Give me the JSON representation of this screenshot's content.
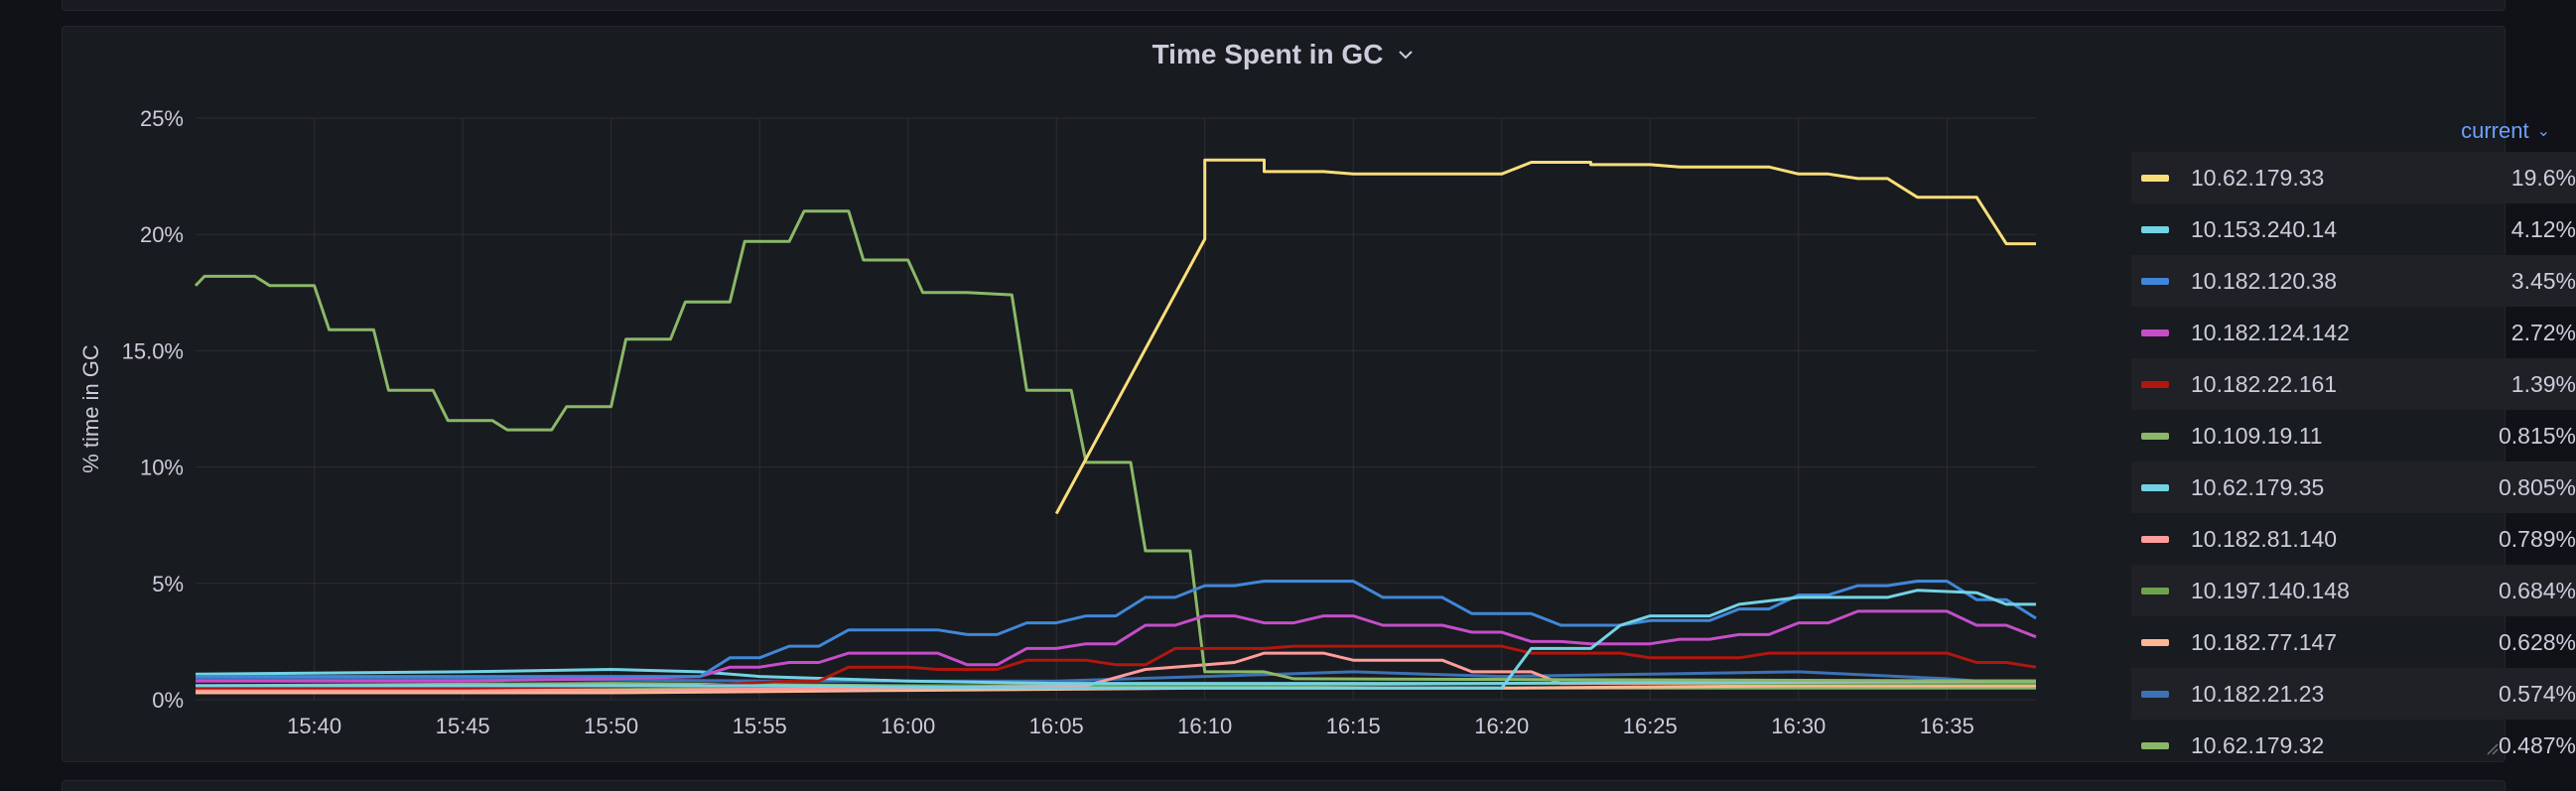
{
  "panel": {
    "title": "Time Spent in GC"
  },
  "legend": {
    "header": "current"
  },
  "colors": {
    "grid": "#2c2e33",
    "tick": "#ccccdc",
    "accent": "#6e9fff"
  },
  "chart_data": {
    "type": "line",
    "title": "Time Spent in GC",
    "ylabel": "% time in GC",
    "xlabel": "",
    "x_domain": [
      "15:36",
      "16:38"
    ],
    "ylim": [
      0,
      25
    ],
    "x_ticks": [
      "15:40",
      "15:45",
      "15:50",
      "15:55",
      "16:00",
      "16:05",
      "16:10",
      "16:15",
      "16:20",
      "16:25",
      "16:30",
      "16:35"
    ],
    "y_ticks": [
      {
        "value": 0,
        "label": "0%"
      },
      {
        "value": 5,
        "label": "5%"
      },
      {
        "value": 10,
        "label": "10%"
      },
      {
        "value": 15,
        "label": "15.0%"
      },
      {
        "value": 20,
        "label": "20%"
      },
      {
        "value": 25,
        "label": "25%"
      }
    ],
    "grid": true,
    "legend_position": "right",
    "series": [
      {
        "name": "10.62.179.33",
        "color": "#fade7a",
        "current": "19.6%",
        "points": [
          [
            "16:05",
            8.0
          ],
          [
            "16:10",
            19.8
          ],
          [
            "16:10",
            23.2
          ],
          [
            "16:12",
            23.2
          ],
          [
            "16:12",
            22.7
          ],
          [
            "16:14",
            22.7
          ],
          [
            "16:15",
            22.6
          ],
          [
            "16:17",
            22.6
          ],
          [
            "16:20",
            22.6
          ],
          [
            "16:21",
            23.1
          ],
          [
            "16:23",
            23.1
          ],
          [
            "16:23",
            23.0
          ],
          [
            "16:25",
            23.0
          ],
          [
            "16:26",
            22.9
          ],
          [
            "16:29",
            22.9
          ],
          [
            "16:30",
            22.6
          ],
          [
            "16:31",
            22.6
          ],
          [
            "16:32",
            22.4
          ],
          [
            "16:33",
            22.4
          ],
          [
            "16:34",
            21.6
          ],
          [
            "16:36",
            21.6
          ],
          [
            "16:37",
            19.6
          ],
          [
            "16:38",
            19.6
          ]
        ]
      },
      {
        "name": "10.153.240.14",
        "color": "#73d2e4",
        "current": "4.12%",
        "points": [
          [
            "15:36",
            0.6
          ],
          [
            "15:45",
            0.6
          ],
          [
            "15:55",
            0.6
          ],
          [
            "16:05",
            0.5
          ],
          [
            "16:10",
            0.5
          ],
          [
            "16:15",
            0.5
          ],
          [
            "16:20",
            0.5
          ],
          [
            "16:21",
            2.2
          ],
          [
            "16:23",
            2.2
          ],
          [
            "16:24",
            3.2
          ],
          [
            "16:25",
            3.6
          ],
          [
            "16:27",
            3.6
          ],
          [
            "16:28",
            4.1
          ],
          [
            "16:30",
            4.4
          ],
          [
            "16:33",
            4.4
          ],
          [
            "16:34",
            4.7
          ],
          [
            "16:36",
            4.6
          ],
          [
            "16:37",
            4.1
          ],
          [
            "16:38",
            4.1
          ]
        ]
      },
      {
        "name": "10.182.120.38",
        "color": "#4087d8",
        "current": "3.45%",
        "points": [
          [
            "15:36",
            1.0
          ],
          [
            "15:45",
            1.0
          ],
          [
            "15:50",
            1.0
          ],
          [
            "15:53",
            1.0
          ],
          [
            "15:54",
            1.8
          ],
          [
            "15:55",
            1.8
          ],
          [
            "15:56",
            2.3
          ],
          [
            "15:57",
            2.3
          ],
          [
            "15:58",
            3.0
          ],
          [
            "16:01",
            3.0
          ],
          [
            "16:02",
            2.8
          ],
          [
            "16:03",
            2.8
          ],
          [
            "16:04",
            3.3
          ],
          [
            "16:05",
            3.3
          ],
          [
            "16:06",
            3.6
          ],
          [
            "16:07",
            3.6
          ],
          [
            "16:08",
            4.4
          ],
          [
            "16:09",
            4.4
          ],
          [
            "16:10",
            4.9
          ],
          [
            "16:11",
            4.9
          ],
          [
            "16:12",
            5.1
          ],
          [
            "16:15",
            5.1
          ],
          [
            "16:16",
            4.4
          ],
          [
            "16:18",
            4.4
          ],
          [
            "16:19",
            3.7
          ],
          [
            "16:21",
            3.7
          ],
          [
            "16:22",
            3.2
          ],
          [
            "16:24",
            3.2
          ],
          [
            "16:25",
            3.4
          ],
          [
            "16:27",
            3.4
          ],
          [
            "16:28",
            3.9
          ],
          [
            "16:29",
            3.9
          ],
          [
            "16:30",
            4.5
          ],
          [
            "16:31",
            4.5
          ],
          [
            "16:32",
            4.9
          ],
          [
            "16:33",
            4.9
          ],
          [
            "16:34",
            5.1
          ],
          [
            "16:35",
            5.1
          ],
          [
            "16:36",
            4.3
          ],
          [
            "16:37",
            4.3
          ],
          [
            "16:38",
            3.5
          ]
        ]
      },
      {
        "name": "10.182.124.142",
        "color": "#c44ec9",
        "current": "2.72%",
        "points": [
          [
            "15:36",
            0.8
          ],
          [
            "15:45",
            0.8
          ],
          [
            "15:50",
            0.9
          ],
          [
            "15:53",
            1.0
          ],
          [
            "15:54",
            1.4
          ],
          [
            "15:55",
            1.4
          ],
          [
            "15:56",
            1.6
          ],
          [
            "15:57",
            1.6
          ],
          [
            "15:58",
            2.0
          ],
          [
            "16:01",
            2.0
          ],
          [
            "16:02",
            1.5
          ],
          [
            "16:03",
            1.5
          ],
          [
            "16:04",
            2.2
          ],
          [
            "16:05",
            2.2
          ],
          [
            "16:06",
            2.4
          ],
          [
            "16:07",
            2.4
          ],
          [
            "16:08",
            3.2
          ],
          [
            "16:09",
            3.2
          ],
          [
            "16:10",
            3.6
          ],
          [
            "16:11",
            3.6
          ],
          [
            "16:12",
            3.3
          ],
          [
            "16:13",
            3.3
          ],
          [
            "16:14",
            3.6
          ],
          [
            "16:15",
            3.6
          ],
          [
            "16:16",
            3.2
          ],
          [
            "16:18",
            3.2
          ],
          [
            "16:19",
            2.9
          ],
          [
            "16:20",
            2.9
          ],
          [
            "16:21",
            2.5
          ],
          [
            "16:22",
            2.5
          ],
          [
            "16:23",
            2.4
          ],
          [
            "16:25",
            2.4
          ],
          [
            "16:26",
            2.6
          ],
          [
            "16:27",
            2.6
          ],
          [
            "16:28",
            2.8
          ],
          [
            "16:29",
            2.8
          ],
          [
            "16:30",
            3.3
          ],
          [
            "16:31",
            3.3
          ],
          [
            "16:32",
            3.8
          ],
          [
            "16:35",
            3.8
          ],
          [
            "16:36",
            3.2
          ],
          [
            "16:37",
            3.2
          ],
          [
            "16:38",
            2.7
          ]
        ]
      },
      {
        "name": "10.182.22.161",
        "color": "#b1170e",
        "current": "1.39%",
        "points": [
          [
            "15:36",
            0.5
          ],
          [
            "15:45",
            0.5
          ],
          [
            "15:53",
            0.6
          ],
          [
            "15:56",
            0.8
          ],
          [
            "15:57",
            0.8
          ],
          [
            "15:58",
            1.4
          ],
          [
            "16:00",
            1.4
          ],
          [
            "16:01",
            1.3
          ],
          [
            "16:03",
            1.3
          ],
          [
            "16:04",
            1.7
          ],
          [
            "16:06",
            1.7
          ],
          [
            "16:07",
            1.5
          ],
          [
            "16:08",
            1.5
          ],
          [
            "16:09",
            2.2
          ],
          [
            "16:12",
            2.2
          ],
          [
            "16:13",
            2.3
          ],
          [
            "16:20",
            2.3
          ],
          [
            "16:21",
            2.0
          ],
          [
            "16:24",
            2.0
          ],
          [
            "16:25",
            1.8
          ],
          [
            "16:28",
            1.8
          ],
          [
            "16:29",
            2.0
          ],
          [
            "16:35",
            2.0
          ],
          [
            "16:36",
            1.6
          ],
          [
            "16:37",
            1.6
          ],
          [
            "16:38",
            1.4
          ]
        ]
      },
      {
        "name": "10.109.19.11",
        "color": "#8ab868",
        "current": "0.815%",
        "points": [
          [
            "15:36",
            17.8
          ],
          [
            "15:36.3",
            18.2
          ],
          [
            "15:38",
            18.2
          ],
          [
            "15:38.5",
            17.8
          ],
          [
            "15:40",
            17.8
          ],
          [
            "15:40.5",
            15.9
          ],
          [
            "15:42",
            15.9
          ],
          [
            "15:42.5",
            13.3
          ],
          [
            "15:44",
            13.3
          ],
          [
            "15:44.5",
            12.0
          ],
          [
            "15:46",
            12.0
          ],
          [
            "15:46.5",
            11.6
          ],
          [
            "15:48",
            11.6
          ],
          [
            "15:48.5",
            12.6
          ],
          [
            "15:50",
            12.6
          ],
          [
            "15:50.5",
            15.5
          ],
          [
            "15:52",
            15.5
          ],
          [
            "15:52.5",
            17.1
          ],
          [
            "15:54",
            17.1
          ],
          [
            "15:54.5",
            19.7
          ],
          [
            "15:56",
            19.7
          ],
          [
            "15:56.5",
            21.0
          ],
          [
            "15:58",
            21.0
          ],
          [
            "15:58.5",
            18.9
          ],
          [
            "16:00",
            18.9
          ],
          [
            "16:00.5",
            17.5
          ],
          [
            "16:02",
            17.5
          ],
          [
            "16:03.5",
            17.4
          ],
          [
            "16:04",
            13.3
          ],
          [
            "16:05.5",
            13.3
          ],
          [
            "16:06",
            10.2
          ],
          [
            "16:07.5",
            10.2
          ],
          [
            "16:08",
            6.4
          ],
          [
            "16:09.5",
            6.4
          ],
          [
            "16:10",
            1.2
          ],
          [
            "16:12",
            1.2
          ],
          [
            "16:13",
            0.9
          ],
          [
            "16:38",
            0.8
          ]
        ]
      },
      {
        "name": "10.62.179.35",
        "color": "#73d2e4",
        "current": "0.805%",
        "points": [
          [
            "15:36",
            1.1
          ],
          [
            "15:45",
            1.2
          ],
          [
            "15:50",
            1.3
          ],
          [
            "15:53",
            1.2
          ],
          [
            "15:55",
            1.0
          ],
          [
            "16:00",
            0.8
          ],
          [
            "16:05",
            0.7
          ],
          [
            "16:10",
            0.7
          ],
          [
            "16:20",
            0.7
          ],
          [
            "16:30",
            0.8
          ],
          [
            "16:38",
            0.8
          ]
        ]
      },
      {
        "name": "10.182.81.140",
        "color": "#ff9c9c",
        "current": "0.789%",
        "points": [
          [
            "15:36",
            0.4
          ],
          [
            "15:50",
            0.4
          ],
          [
            "16:00",
            0.5
          ],
          [
            "16:06",
            0.6
          ],
          [
            "16:08",
            1.3
          ],
          [
            "16:11",
            1.6
          ],
          [
            "16:12",
            2.0
          ],
          [
            "16:14",
            2.0
          ],
          [
            "16:15",
            1.7
          ],
          [
            "16:18",
            1.7
          ],
          [
            "16:19",
            1.2
          ],
          [
            "16:21",
            1.2
          ],
          [
            "16:22",
            0.7
          ],
          [
            "16:38",
            0.8
          ]
        ]
      },
      {
        "name": "10.197.140.148",
        "color": "#6ea34b",
        "current": "0.684%",
        "points": [
          [
            "15:36",
            0.5
          ],
          [
            "15:50",
            0.5
          ],
          [
            "16:00",
            0.6
          ],
          [
            "16:10",
            0.6
          ],
          [
            "16:20",
            0.7
          ],
          [
            "16:30",
            0.7
          ],
          [
            "16:38",
            0.7
          ]
        ]
      },
      {
        "name": "10.182.77.147",
        "color": "#ffb694",
        "current": "0.628%",
        "points": [
          [
            "15:36",
            0.3
          ],
          [
            "15:50",
            0.3
          ],
          [
            "16:00",
            0.4
          ],
          [
            "16:10",
            0.5
          ],
          [
            "16:20",
            0.5
          ],
          [
            "16:30",
            0.6
          ],
          [
            "16:38",
            0.6
          ]
        ]
      },
      {
        "name": "10.182.21.23",
        "color": "#3d71b5",
        "current": "0.574%",
        "points": [
          [
            "15:36",
            0.9
          ],
          [
            "15:45",
            0.9
          ],
          [
            "15:55",
            0.8
          ],
          [
            "16:05",
            0.8
          ],
          [
            "16:10",
            1.0
          ],
          [
            "16:15",
            1.2
          ],
          [
            "16:20",
            1.0
          ],
          [
            "16:25",
            1.1
          ],
          [
            "16:30",
            1.2
          ],
          [
            "16:35",
            0.9
          ],
          [
            "16:38",
            0.6
          ]
        ]
      },
      {
        "name": "10.62.179.32",
        "color": "#8ab868",
        "current": "0.487%",
        "points": [
          [
            "15:36",
            0.6
          ],
          [
            "15:50",
            0.7
          ],
          [
            "16:00",
            0.6
          ],
          [
            "16:10",
            0.5
          ],
          [
            "16:20",
            0.5
          ],
          [
            "16:30",
            0.5
          ],
          [
            "16:38",
            0.5
          ]
        ]
      }
    ]
  }
}
